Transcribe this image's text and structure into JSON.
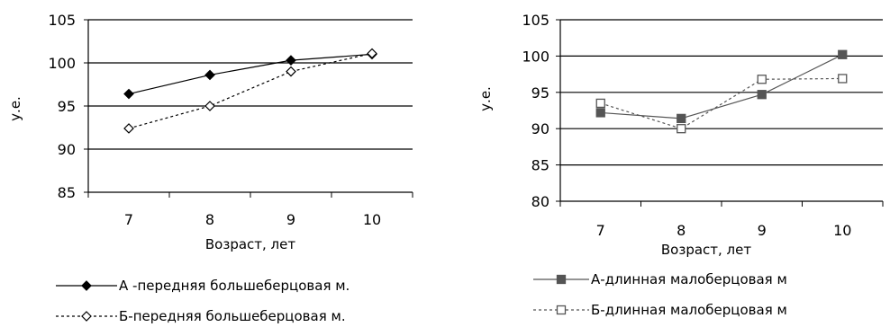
{
  "chart_data": [
    {
      "type": "line",
      "ylabel": "у.е.",
      "xlabel": "Возраст, лет",
      "categories": [
        "7",
        "8",
        "9",
        "10"
      ],
      "ylim": [
        85,
        105
      ],
      "yticks": [
        "85",
        "90",
        "95",
        "100",
        "105"
      ],
      "grid": true,
      "legend_position": "bottom",
      "series": [
        {
          "name": "А -передняя большеберцовая м.",
          "values": [
            96.4,
            98.6,
            100.3,
            101.0
          ],
          "line": "solid",
          "marker": "filled-diamond",
          "color": "#000000"
        },
        {
          "name": "Б-передняя большеберцовая м.",
          "values": [
            92.4,
            95.0,
            99.0,
            101.1
          ],
          "line": "dashed",
          "marker": "hollow-diamond",
          "color": "#000000"
        }
      ]
    },
    {
      "type": "line",
      "ylabel": "у.е.",
      "xlabel": "Возраст, лет",
      "categories": [
        "7",
        "8",
        "9",
        "10"
      ],
      "ylim": [
        80,
        105
      ],
      "yticks": [
        "80",
        "85",
        "90",
        "95",
        "100",
        "105"
      ],
      "grid": true,
      "legend_position": "bottom",
      "series": [
        {
          "name": "А-длинная малоберцовая м",
          "values": [
            92.2,
            91.4,
            94.7,
            100.2
          ],
          "line": "solid",
          "marker": "filled-square",
          "color": "#555555"
        },
        {
          "name": "Б-длинная малоберцовая м",
          "values": [
            93.5,
            90.0,
            96.8,
            96.9
          ],
          "line": "dashed",
          "marker": "hollow-square",
          "color": "#555555"
        }
      ]
    }
  ]
}
